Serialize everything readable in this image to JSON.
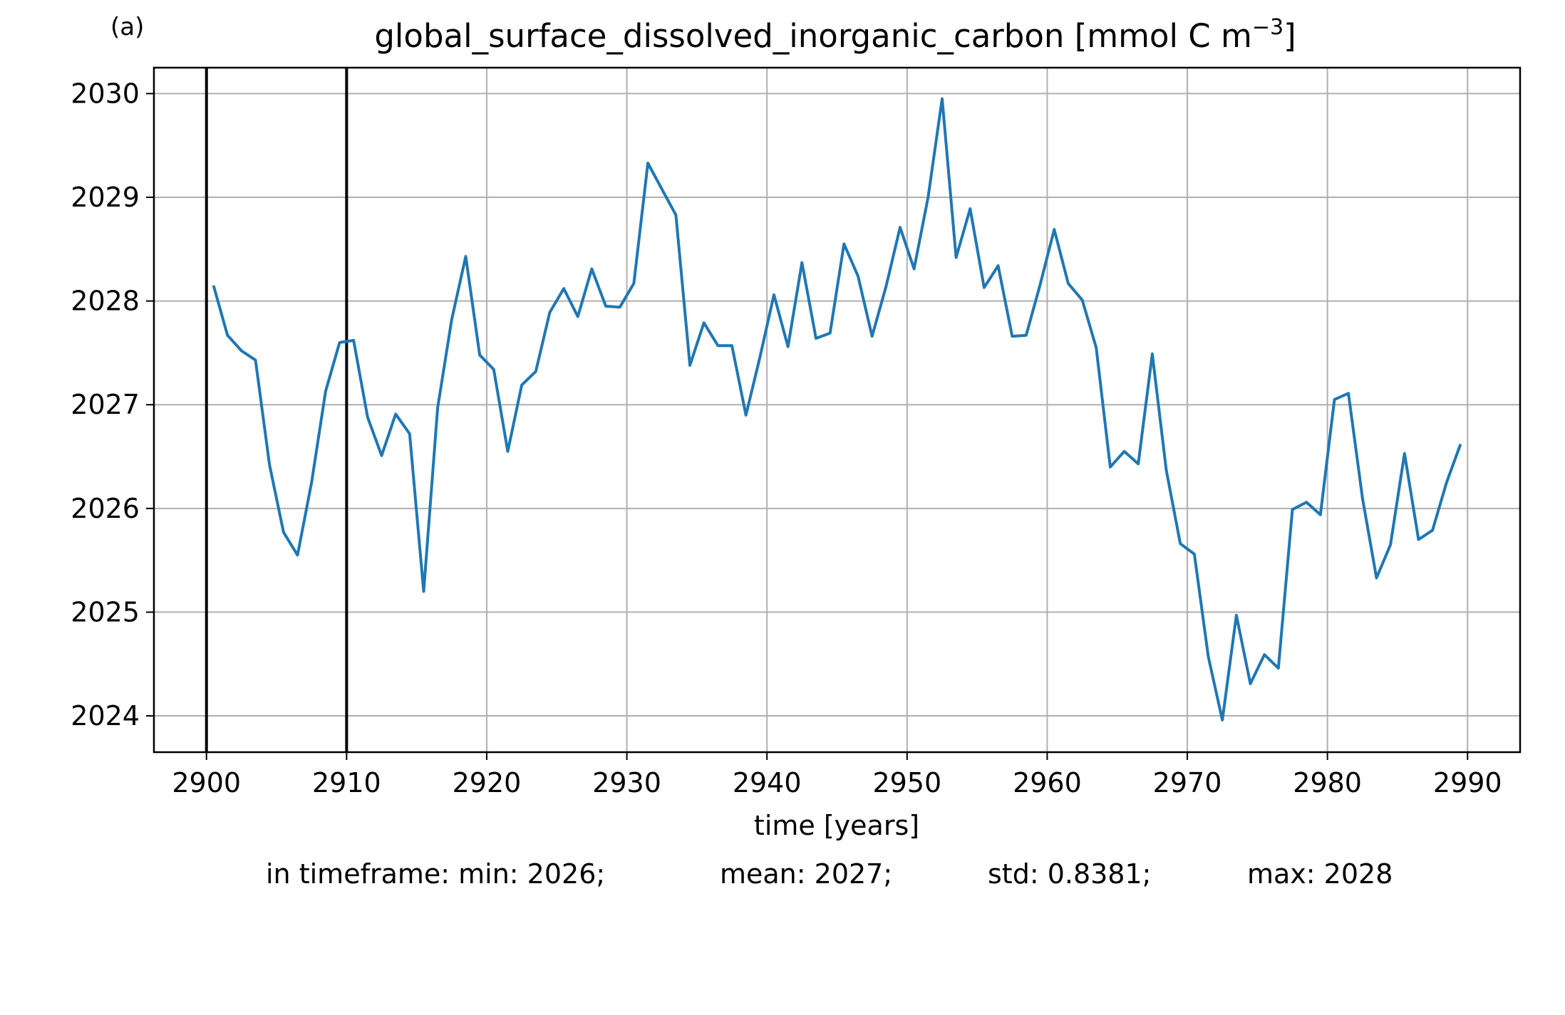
{
  "panel_label": "(a)",
  "chart_data": {
    "type": "line",
    "title": "global_surface_dissolved_inorganic_carbon [mmol C m",
    "title_superscript": "−3",
    "title_suffix": "]",
    "xlabel": "time [years]",
    "ylabel": "",
    "xlim": [
      2896.25,
      2993.75
    ],
    "ylim": [
      2023.65,
      2030.25
    ],
    "xticks": [
      2900,
      2910,
      2920,
      2930,
      2940,
      2950,
      2960,
      2970,
      2980,
      2990
    ],
    "yticks": [
      2024,
      2025,
      2026,
      2027,
      2028,
      2029,
      2030
    ],
    "grid": true,
    "vertical_markers": [
      2900,
      2910
    ],
    "series_color": "#1f77b4",
    "series": [
      {
        "x": [
          2900.5,
          2901.5,
          2902.5,
          2903.5,
          2904.5,
          2905.5,
          2906.5,
          2907.5,
          2908.5,
          2909.5,
          2910.5,
          2911.5,
          2912.5,
          2913.5,
          2914.5,
          2915.5,
          2916.5,
          2917.5,
          2918.5,
          2919.5,
          2920.5,
          2921.5,
          2922.5,
          2923.5,
          2924.5,
          2925.5,
          2926.5,
          2927.5,
          2928.5,
          2929.5,
          2930.5,
          2931.5,
          2932.5,
          2933.5,
          2934.5,
          2935.5,
          2936.5,
          2937.5,
          2938.5,
          2939.5,
          2940.5,
          2941.5,
          2942.5,
          2943.5,
          2944.5,
          2945.5,
          2946.5,
          2947.5,
          2948.5,
          2949.5,
          2950.5,
          2951.5,
          2952.5,
          2953.5,
          2954.5,
          2955.5,
          2956.5,
          2957.5,
          2958.5,
          2959.5,
          2960.5,
          2961.5,
          2962.5,
          2963.5,
          2964.5,
          2965.5,
          2966.5,
          2967.5,
          2968.5,
          2969.5,
          2970.5,
          2971.5,
          2972.5,
          2973.5,
          2974.5,
          2975.5,
          2976.5,
          2977.5,
          2978.5,
          2979.5,
          2980.5,
          2981.5,
          2982.5,
          2983.5,
          2984.5,
          2985.5,
          2986.5,
          2987.5,
          2988.5,
          2989.5
        ],
        "values": [
          2028.15,
          2027.67,
          2027.52,
          2027.43,
          2026.42,
          2025.77,
          2025.55,
          2026.25,
          2027.13,
          2027.6,
          2027.62,
          2026.88,
          2026.51,
          2026.91,
          2026.72,
          2025.2,
          2026.97,
          2027.82,
          2028.43,
          2027.48,
          2027.34,
          2026.55,
          2027.19,
          2027.32,
          2027.89,
          2028.12,
          2027.85,
          2028.31,
          2027.95,
          2027.94,
          2028.17,
          2029.33,
          2029.08,
          2028.83,
          2027.38,
          2027.79,
          2027.57,
          2027.57,
          2026.9,
          2027.46,
          2028.06,
          2027.56,
          2028.37,
          2027.64,
          2027.69,
          2028.55,
          2028.24,
          2027.66,
          2028.14,
          2028.71,
          2028.31,
          2029.0,
          2029.95,
          2028.42,
          2028.89,
          2028.13,
          2028.34,
          2027.66,
          2027.67,
          2028.16,
          2028.69,
          2028.17,
          2028.01,
          2027.55,
          2026.4,
          2026.55,
          2026.43,
          2027.49,
          2026.37,
          2025.66,
          2025.56,
          2024.57,
          2023.96,
          2024.97,
          2024.31,
          2024.59,
          2024.46,
          2025.99,
          2026.06,
          2025.94,
          2027.05,
          2027.11,
          2026.1,
          2025.33,
          2025.65,
          2026.53,
          2025.7,
          2025.79,
          2026.25,
          2026.62
        ]
      }
    ]
  },
  "stats": {
    "min": "in timeframe: min: 2026;",
    "mean": "mean: 2027;",
    "std": "std: 0.8381;",
    "max": "max: 2028"
  }
}
